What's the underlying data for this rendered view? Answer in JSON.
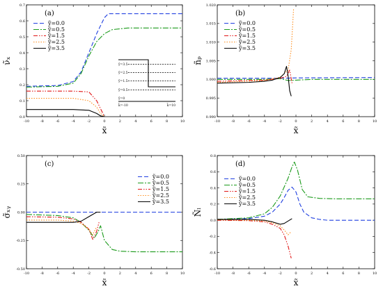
{
  "chart_data": [
    {
      "panel": "(a)",
      "type": "line",
      "xlabel": "x̃",
      "ylabel": "ν̃ₓ",
      "xlim": [
        -10,
        10
      ],
      "ylim": [
        0.0,
        0.7
      ],
      "xticks": [
        "-10",
        "-8",
        "-6",
        "-4",
        "-2",
        "0",
        "2",
        "4",
        "6",
        "8",
        "10"
      ],
      "yticks": [
        "0.0",
        "0.1",
        "0.2",
        "0.3",
        "0.4",
        "0.5",
        "0.6",
        "0.7"
      ],
      "legend": {
        "placement": "upper-left"
      },
      "inset": {
        "labels": [
          "ỹ=3.5",
          "ỹ=2.5",
          "ỹ=1.5",
          "ỹ=0.5",
          "ỹ=0"
        ],
        "left_label": "k̃=-10",
        "right_label": "k̃=10"
      },
      "series": [
        {
          "name": "ỹ=0.0",
          "color": "#1f3fe0",
          "dash": "6,3",
          "x": [
            -10,
            -6,
            -4,
            -3,
            -2,
            -1,
            0,
            0.5,
            10
          ],
          "y": [
            0.19,
            0.195,
            0.22,
            0.28,
            0.4,
            0.52,
            0.62,
            0.645,
            0.645
          ]
        },
        {
          "name": "ỹ=0.5",
          "color": "#1a9a1a",
          "dash": "8,2,2,2",
          "x": [
            -10,
            -6,
            -4,
            -3,
            -2,
            -1,
            0,
            1,
            3,
            10
          ],
          "y": [
            0.185,
            0.19,
            0.21,
            0.27,
            0.38,
            0.47,
            0.52,
            0.545,
            0.555,
            0.555
          ]
        },
        {
          "name": "ỹ=1.5",
          "color": "#e01414",
          "dash": "6,2,1.5,2,1.5,2",
          "x": [
            -10,
            -4,
            -2,
            -1,
            -0.5,
            0
          ],
          "y": [
            0.16,
            0.16,
            0.155,
            0.1,
            0.05,
            0.0
          ]
        },
        {
          "name": "ỹ=2.5",
          "color": "#ff8c1a",
          "dash": "1.5,2",
          "x": [
            -10,
            -4,
            -2,
            -1,
            -0.5,
            0
          ],
          "y": [
            0.115,
            0.115,
            0.1,
            0.06,
            0.02,
            0.0
          ]
        },
        {
          "name": "ỹ=3.5",
          "color": "#000000",
          "dash": "",
          "x": [
            -10,
            -4,
            -2,
            -1,
            -0.5,
            0
          ],
          "y": [
            0.045,
            0.045,
            0.04,
            0.02,
            0.005,
            0.0
          ]
        }
      ]
    },
    {
      "panel": "(b)",
      "type": "line",
      "xlabel": "x̃",
      "ylabel": "ñₚ",
      "xlim": [
        -10,
        10
      ],
      "ylim": [
        0.99,
        1.02
      ],
      "xticks": [
        "-10",
        "-8",
        "-6",
        "-4",
        "-2",
        "0",
        "2",
        "4",
        "6",
        "8",
        "10"
      ],
      "yticks": [
        "0.990",
        "0.995",
        "1.000",
        "1.005",
        "1.010",
        "1.015",
        "1.020"
      ],
      "legend": {
        "placement": "upper-left"
      },
      "series": [
        {
          "name": "ỹ=0.0",
          "color": "#1f3fe0",
          "dash": "6,3",
          "x": [
            -10,
            -4,
            -2,
            0,
            10
          ],
          "y": [
            1.0003,
            1.0003,
            1.0003,
            1.0004,
            1.0005
          ]
        },
        {
          "name": "ỹ=0.5",
          "color": "#1a9a1a",
          "dash": "8,2,2,2",
          "x": [
            -10,
            -4,
            -2,
            -1,
            0,
            2,
            10
          ],
          "y": [
            1.0,
            1.0,
            1.0002,
            0.9997,
            0.9998,
            1.0,
            1.0
          ]
        },
        {
          "name": "ỹ=1.5",
          "color": "#e01414",
          "dash": "6,2,1.5,2,1.5,2",
          "x": [
            -10,
            -4,
            -2,
            -1.2,
            -0.8,
            -0.5
          ],
          "y": [
            0.9995,
            0.9998,
            1.0003,
            1.0008,
            1.0025,
            0.999
          ]
        },
        {
          "name": "ỹ=2.5",
          "color": "#ff8c1a",
          "dash": "1.5,2",
          "x": [
            -10,
            -4,
            -2,
            -1,
            -0.6,
            -0.3
          ],
          "y": [
            0.9992,
            0.9997,
            1.0006,
            1.0025,
            1.008,
            1.019
          ]
        },
        {
          "name": "ỹ=3.5",
          "color": "#000000",
          "dash": "",
          "x": [
            -10,
            -6,
            -4,
            -3,
            -2,
            -1.5,
            -1.2,
            -1.0,
            -0.8,
            -0.6
          ],
          "y": [
            0.999,
            0.9992,
            0.9995,
            0.9998,
            1.0005,
            1.0015,
            1.0035,
            1.001,
            0.997,
            0.9955
          ]
        }
      ]
    },
    {
      "panel": "(c)",
      "type": "line",
      "xlabel": "x̃",
      "ylabel": "σ̃ₓᵧ",
      "xlim": [
        -10,
        10
      ],
      "ylim": [
        -0.5,
        0.5
      ],
      "xticks": [
        "-10",
        "-8",
        "-6",
        "-4",
        "-2",
        "0",
        "2",
        "4",
        "6",
        "8",
        "10"
      ],
      "yticks": [
        "-0.50",
        "-0.25",
        "0.00",
        "0.25",
        "0.50"
      ],
      "legend": {
        "placement": "upper-right"
      },
      "series": [
        {
          "name": "ỹ=0.0",
          "color": "#1f3fe0",
          "dash": "6,3",
          "x": [
            -10,
            10
          ],
          "y": [
            0.0,
            0.0
          ]
        },
        {
          "name": "ỹ=0.5",
          "color": "#1a9a1a",
          "dash": "8,2,2,2",
          "x": [
            -10,
            -6,
            -4,
            -3,
            -2,
            -1.3,
            -0.8,
            -0.5,
            0,
            1,
            2,
            4,
            10
          ],
          "y": [
            -0.02,
            -0.03,
            -0.05,
            -0.09,
            -0.16,
            -0.23,
            -0.17,
            -0.12,
            -0.25,
            -0.33,
            -0.345,
            -0.35,
            -0.35
          ]
        },
        {
          "name": "ỹ=1.5",
          "color": "#e01414",
          "dash": "6,2,1.5,2,1.5,2",
          "x": [
            -10,
            -6,
            -4,
            -3,
            -2,
            -1.5,
            -1.0,
            -0.7
          ],
          "y": [
            -0.04,
            -0.045,
            -0.06,
            -0.09,
            -0.15,
            -0.24,
            -0.17,
            -0.09
          ]
        },
        {
          "name": "ỹ=2.5",
          "color": "#ff8c1a",
          "dash": "1.5,2",
          "x": [
            -10,
            -6,
            -4,
            -3,
            -2,
            -1.5,
            -1.0
          ],
          "y": [
            -0.07,
            -0.07,
            -0.08,
            -0.1,
            -0.15,
            -0.2,
            -0.13
          ]
        },
        {
          "name": "ỹ=3.5",
          "color": "#000000",
          "dash": "",
          "x": [
            -10,
            -6,
            -4,
            -3,
            -2,
            -1,
            -0.5
          ],
          "y": [
            -0.09,
            -0.09,
            -0.09,
            -0.08,
            -0.04,
            0.0,
            0.0
          ]
        }
      ]
    },
    {
      "panel": "(d)",
      "type": "line",
      "xlabel": "x̃",
      "ylabel": "Ñₗ",
      "xlim": [
        -10,
        10
      ],
      "ylim": [
        -0.6,
        0.8
      ],
      "xticks": [
        "-10",
        "-8",
        "-6",
        "-4",
        "-2",
        "0",
        "2",
        "4",
        "6",
        "8",
        "10"
      ],
      "yticks": [
        "-0.6",
        "-0.4",
        "-0.2",
        "0.0",
        "0.2",
        "0.4",
        "0.6",
        "0.8"
      ],
      "legend": {
        "placement": "upper-left"
      },
      "series": [
        {
          "name": "ỹ=0.0",
          "color": "#1f3fe0",
          "dash": "6,3",
          "x": [
            -10,
            -6,
            -4,
            -3,
            -2,
            -1.5,
            -1,
            -0.5,
            0,
            0.5,
            1,
            2,
            3,
            4,
            10
          ],
          "y": [
            0.01,
            0.02,
            0.05,
            0.1,
            0.2,
            0.28,
            0.37,
            0.41,
            0.35,
            0.2,
            0.1,
            0.03,
            0.01,
            0.0,
            0.0
          ]
        },
        {
          "name": "ỹ=0.5",
          "color": "#1a9a1a",
          "dash": "8,2,2,2",
          "x": [
            -10,
            -6,
            -4,
            -3,
            -2,
            -1,
            -0.5,
            -0.2,
            0.2,
            0.8,
            1.5,
            3,
            5,
            10
          ],
          "y": [
            0.01,
            0.03,
            0.08,
            0.16,
            0.3,
            0.52,
            0.66,
            0.72,
            0.62,
            0.38,
            0.29,
            0.27,
            0.265,
            0.265
          ]
        },
        {
          "name": "ỹ=1.5",
          "color": "#e01414",
          "dash": "6,2,1.5,2,1.5,2",
          "x": [
            -10,
            -6,
            -4,
            -3,
            -2,
            -1.5,
            -1.0,
            -0.6
          ],
          "y": [
            0.0,
            -0.005,
            -0.02,
            -0.05,
            -0.1,
            -0.18,
            -0.32,
            -0.47
          ]
        },
        {
          "name": "ỹ=2.5",
          "color": "#ff8c1a",
          "dash": "1.5,2",
          "x": [
            -10,
            -6,
            -4,
            -3,
            -2,
            -1.5,
            -1.0,
            -0.6
          ],
          "y": [
            0.005,
            0.0,
            -0.01,
            -0.03,
            -0.07,
            -0.12,
            -0.18,
            -0.14
          ]
        },
        {
          "name": "ỹ=3.5",
          "color": "#000000",
          "dash": "",
          "x": [
            -10,
            -6,
            -4,
            -3,
            -2,
            -1.5,
            -1,
            -0.5
          ],
          "y": [
            0.01,
            0.01,
            0.0,
            -0.02,
            -0.05,
            -0.04,
            -0.01,
            0.02
          ]
        }
      ]
    }
  ]
}
